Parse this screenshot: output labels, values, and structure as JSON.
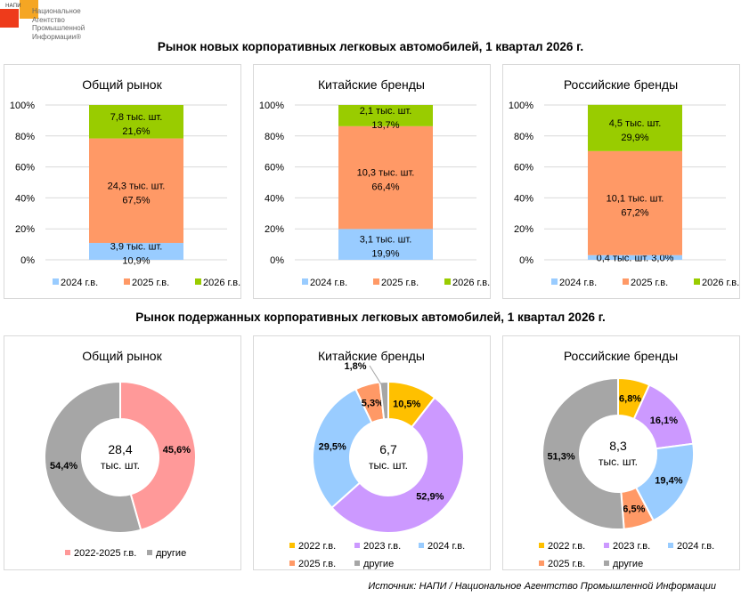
{
  "logo": {
    "abbr": "НАПИ",
    "lines": [
      "Национальное",
      "Агентство",
      "Промышленной",
      "Информации®"
    ]
  },
  "sections": {
    "new_title": "Рынок новых корпоративных легковых автомобилей, 1 квартал 2026 г.",
    "used_title": "Рынок подержанных корпоративных легковых автомобилей, 1 квартал 2026 г."
  },
  "source": "Источник: НАПИ / Национальное Агентство Промышленной Информации",
  "colors": {
    "2024_bar": "#99CCFF",
    "2025_bar": "#FF9966",
    "2026_bar": "#99CC00",
    "2022": "#FFC000",
    "2023": "#CC99FF",
    "2024": "#99CCFF",
    "2025": "#FF9966",
    "other": "#A6A6A6",
    "2022_2025": "#FF9999"
  },
  "chart_data": [
    {
      "type": "bar",
      "stacked": true,
      "title": "Общий рынок",
      "ylim": [
        0,
        100
      ],
      "yticks": [
        "0%",
        "20%",
        "40%",
        "60%",
        "80%",
        "100%"
      ],
      "series": [
        {
          "name": "2024 г.в.",
          "value": 10.9,
          "label1": "3,9 тыс. шт.",
          "label2": "10,9%",
          "color": "#99CCFF"
        },
        {
          "name": "2025 г.в.",
          "value": 67.5,
          "label1": "24,3 тыс. шт.",
          "label2": "67,5%",
          "color": "#FF9966"
        },
        {
          "name": "2026 г.в.",
          "value": 21.6,
          "label1": "7,8 тыс. шт.",
          "label2": "21,6%",
          "color": "#99CC00"
        }
      ],
      "legend": "bottom"
    },
    {
      "type": "bar",
      "stacked": true,
      "title": "Китайские бренды",
      "ylim": [
        0,
        100
      ],
      "yticks": [
        "0%",
        "20%",
        "40%",
        "60%",
        "80%",
        "100%"
      ],
      "series": [
        {
          "name": "2024 г.в.",
          "value": 19.9,
          "label1": "3,1 тыс. шт.",
          "label2": "19,9%",
          "color": "#99CCFF"
        },
        {
          "name": "2025 г.в.",
          "value": 66.4,
          "label1": "10,3 тыс. шт.",
          "label2": "66,4%",
          "color": "#FF9966"
        },
        {
          "name": "2026 г.в.",
          "value": 13.7,
          "label1": "2,1 тыс. шт.",
          "label2": "13,7%",
          "color": "#99CC00"
        }
      ],
      "legend": "bottom"
    },
    {
      "type": "bar",
      "stacked": true,
      "title": "Российские бренды",
      "ylim": [
        0,
        100
      ],
      "yticks": [
        "0%",
        "20%",
        "40%",
        "60%",
        "80%",
        "100%"
      ],
      "series": [
        {
          "name": "2024 г.в.",
          "value": 3.0,
          "label1": "0,4 тыс. шт. 3,0%",
          "label2": "",
          "color": "#99CCFF"
        },
        {
          "name": "2025 г.в.",
          "value": 67.2,
          "label1": "10,1 тыс. шт.",
          "label2": "67,2%",
          "color": "#FF9966"
        },
        {
          "name": "2026 г.в.",
          "value": 29.9,
          "label1": "4,5 тыс. шт.",
          "label2": "29,9%",
          "color": "#99CC00"
        }
      ],
      "legend": "bottom"
    },
    {
      "type": "pie",
      "donut": true,
      "title": "Общий рынок",
      "center_value": "28,4",
      "center_unit": "тыс. шт.",
      "slices": [
        {
          "name": "2022-2025 г.в.",
          "value": 45.6,
          "label": "45,6%",
          "color": "#FF9999"
        },
        {
          "name": "другие",
          "value": 54.4,
          "label": "54,4%",
          "color": "#A6A6A6"
        }
      ],
      "legend": "bottom"
    },
    {
      "type": "pie",
      "donut": true,
      "title": "Китайские бренды",
      "center_value": "6,7",
      "center_unit": "тыс. шт.",
      "slices": [
        {
          "name": "2022 г.в.",
          "value": 10.5,
          "label": "10,5%",
          "color": "#FFC000"
        },
        {
          "name": "2023 г.в.",
          "value": 52.9,
          "label": "52,9%",
          "color": "#CC99FF"
        },
        {
          "name": "2024 г.в.",
          "value": 29.5,
          "label": "29,5%",
          "color": "#99CCFF"
        },
        {
          "name": "2025 г.в.",
          "value": 5.3,
          "label": "5,3%",
          "color": "#FF9966"
        },
        {
          "name": "другие",
          "value": 1.8,
          "label": "1,8%",
          "color": "#A6A6A6"
        }
      ],
      "legend": "bottom"
    },
    {
      "type": "pie",
      "donut": true,
      "title": "Российские бренды",
      "center_value": "8,3",
      "center_unit": "тыс. шт.",
      "slices": [
        {
          "name": "2022 г.в.",
          "value": 6.8,
          "label": "6,8%",
          "color": "#FFC000"
        },
        {
          "name": "2023 г.в.",
          "value": 16.1,
          "label": "16,1%",
          "color": "#CC99FF"
        },
        {
          "name": "2024 г.в.",
          "value": 19.4,
          "label": "19,4%",
          "color": "#99CCFF"
        },
        {
          "name": "2025 г.в.",
          "value": 6.5,
          "label": "6,5%",
          "color": "#FF9966"
        },
        {
          "name": "другие",
          "value": 51.3,
          "label": "51,3%",
          "color": "#A6A6A6"
        }
      ],
      "legend": "bottom"
    }
  ]
}
